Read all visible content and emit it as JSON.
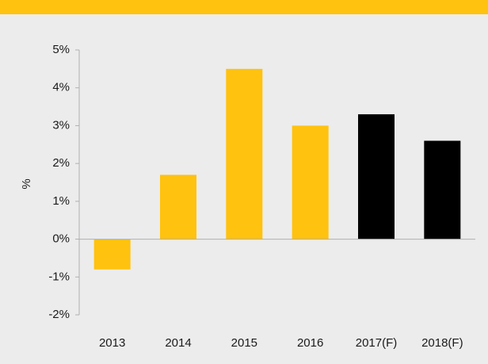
{
  "chart_data": {
    "type": "bar",
    "y_label": "%",
    "categories": [
      "2013",
      "2014",
      "2015",
      "2016",
      "2017(F)",
      "2018(F)"
    ],
    "values": [
      -0.8,
      1.7,
      4.5,
      3.0,
      3.3,
      2.6
    ],
    "colors": [
      "#ffc20e",
      "#ffc20e",
      "#ffc20e",
      "#ffc20e",
      "#000000",
      "#000000"
    ],
    "ylim": [
      -2,
      5
    ],
    "yticks": [
      {
        "value": -2,
        "label": "-2%"
      },
      {
        "value": -1,
        "label": "-1%"
      },
      {
        "value": 0,
        "label": "0%"
      },
      {
        "value": 1,
        "label": "1%"
      },
      {
        "value": 2,
        "label": "2%"
      },
      {
        "value": 3,
        "label": "3%"
      },
      {
        "value": 4,
        "label": "4%"
      },
      {
        "value": 5,
        "label": "5%"
      }
    ],
    "grid": false
  }
}
